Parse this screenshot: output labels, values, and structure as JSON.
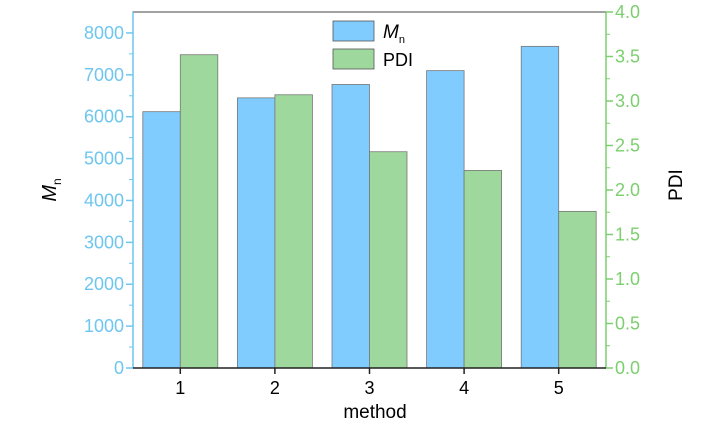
{
  "chart_data": {
    "type": "bar",
    "categories": [
      "1",
      "2",
      "3",
      "4",
      "5"
    ],
    "xlabel": "method",
    "ylabel_left": {
      "main": "M",
      "sub": "n"
    },
    "ylabel_right": "PDI",
    "ylim_left": [
      0,
      8500
    ],
    "ylim_right": [
      0,
      4.0
    ],
    "yticks_left": [
      "0",
      "1000",
      "2000",
      "3000",
      "4000",
      "5000",
      "6000",
      "7000",
      "8000"
    ],
    "yticks_right": [
      "0.0",
      "0.5",
      "1.0",
      "1.5",
      "2.0",
      "2.5",
      "3.0",
      "3.5",
      "4.0"
    ],
    "series": [
      {
        "name": {
          "main": "M",
          "sub": "n"
        },
        "axis": "left",
        "color": "#80ccff",
        "values": [
          6120,
          6450,
          6770,
          7100,
          7680
        ]
      },
      {
        "name": "PDI",
        "axis": "right",
        "color": "#9ed89c",
        "values": [
          3.52,
          3.07,
          2.43,
          2.22,
          1.76
        ]
      }
    ],
    "legend": "top-center",
    "left_axis_color": "#6ec6f0",
    "right_axis_color": "#7ccf6e"
  }
}
